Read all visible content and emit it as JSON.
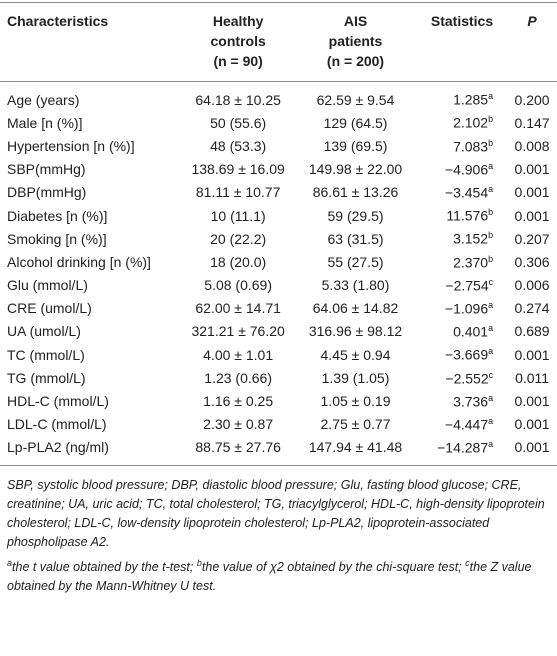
{
  "table": {
    "header": [
      {
        "text": "Characteristics"
      },
      {
        "text": "Healthy controls",
        "sub": "(n = 90)"
      },
      {
        "text": "AIS patients",
        "sub": "(n = 200)"
      },
      {
        "text": "Statistics"
      },
      {
        "text": "P"
      }
    ],
    "rows": [
      [
        "Age (years)",
        "64.18 ± 10.25",
        "62.59 ± 9.54",
        {
          "value": "1.285",
          "sup": "a"
        },
        "0.200"
      ],
      [
        "Male [n (%)]",
        "50 (55.6)",
        "129 (64.5)",
        {
          "value": "2.102",
          "sup": "b"
        },
        "0.147"
      ],
      [
        "Hypertension [n (%)]",
        "48 (53.3)",
        "139 (69.5)",
        {
          "value": "7.083",
          "sup": "b"
        },
        "0.008"
      ],
      [
        "SBP(mmHg)",
        "138.69 ± 16.09",
        "149.98 ± 22.00",
        {
          "value": "−4.906",
          "sup": "a"
        },
        "0.001"
      ],
      [
        "DBP(mmHg)",
        "81.11 ± 10.77",
        "86.61 ± 13.26",
        {
          "value": "−3.454",
          "sup": "a"
        },
        "0.001"
      ],
      [
        "Diabetes [n (%)]",
        "10 (11.1)",
        "59 (29.5)",
        {
          "value": "11.576",
          "sup": "b"
        },
        "0.001"
      ],
      [
        "Smoking [n (%)]",
        "20 (22.2)",
        "63 (31.5)",
        {
          "value": "3.152",
          "sup": "b"
        },
        "0.207"
      ],
      [
        "Alcohol drinking [n (%)]",
        "18 (20.0)",
        "55 (27.5)",
        {
          "value": "2.370",
          "sup": "b"
        },
        "0.306"
      ],
      [
        "Glu (mmol/L)",
        "5.08 (0.69)",
        "5.33 (1.80)",
        {
          "value": "−2.754",
          "sup": "c"
        },
        "0.006"
      ],
      [
        "CRE (umol/L)",
        "62.00 ± 14.71",
        "64.06 ± 14.82",
        {
          "value": "−1.096",
          "sup": "a"
        },
        "0.274"
      ],
      [
        "UA (umol/L)",
        "321.21 ± 76.20",
        "316.96 ± 98.12",
        {
          "value": "0.401",
          "sup": "a"
        },
        "0.689"
      ],
      [
        "TC (mmol/L)",
        "4.00 ± 1.01",
        "4.45 ± 0.94",
        {
          "value": "−3.669",
          "sup": "a"
        },
        "0.001"
      ],
      [
        "TG (mmol/L)",
        "1.23 (0.66)",
        "1.39 (1.05)",
        {
          "value": "−2.552",
          "sup": "c"
        },
        "0.011"
      ],
      [
        "HDL-C (mmol/L)",
        "1.16 ± 0.25",
        "1.05 ± 0.19",
        {
          "value": "3.736",
          "sup": "a"
        },
        "0.001"
      ],
      [
        "LDL-C (mmol/L)",
        "2.30 ± 0.87",
        "2.75 ± 0.77",
        {
          "value": "−4.447",
          "sup": "a"
        },
        "0.001"
      ],
      [
        "Lp-PLA2 (ng/ml)",
        "88.75 ± 27.76",
        "147.94 ± 41.48",
        {
          "value": "−14.287",
          "sup": "a"
        },
        "0.001"
      ]
    ]
  },
  "footnote": {
    "abbreviations": "SBP, systolic blood pressure; DBP, diastolic blood pressure; Glu, fasting blood glucose; CRE, creatinine; UA, uric acid; TC, total cholesterol; TG, triacylglycerol; HDL-C, high-density lipoprotein cholesterol; LDL-C, low-density lipoprotein cholesterol; Lp-PLA2, lipoprotein-associated phospholipase A2.",
    "notes": [
      {
        "sup": "a",
        "text": "the t value obtained by the t-test;"
      },
      {
        "sup": "b",
        "text": "the value of χ2 obtained by the chi-square test;"
      },
      {
        "sup": "c",
        "text": "the Z value obtained by the Mann-Whitney U test."
      }
    ]
  }
}
